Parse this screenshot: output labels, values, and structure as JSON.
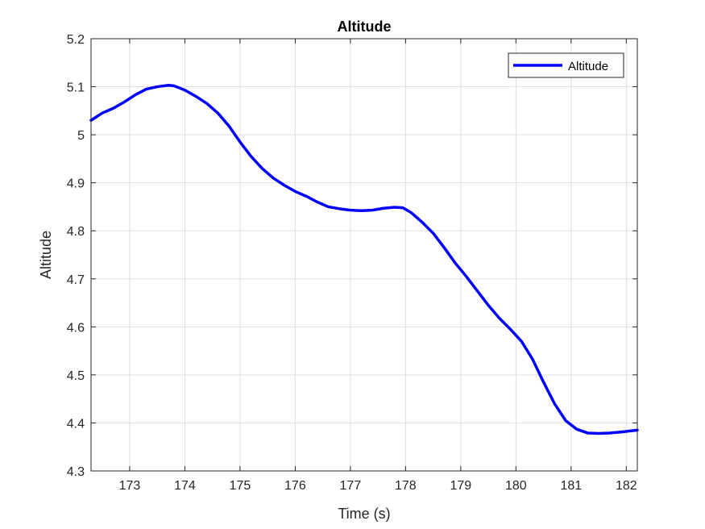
{
  "chart_data": {
    "type": "line",
    "title": "Altitude",
    "xlabel": "Time (s)",
    "ylabel": "Altitude",
    "xlim": [
      172.3,
      182.2
    ],
    "ylim": [
      4.3,
      5.2
    ],
    "xticks": [
      173,
      174,
      175,
      176,
      177,
      178,
      179,
      180,
      181,
      182
    ],
    "xtick_labels": [
      "173",
      "174",
      "175",
      "176",
      "177",
      "178",
      "179",
      "180",
      "181",
      "182"
    ],
    "yticks": [
      4.3,
      4.4,
      4.5,
      4.6,
      4.7,
      4.8,
      4.9,
      5.0,
      5.1,
      5.2
    ],
    "ytick_labels": [
      "4.3",
      "4.4",
      "4.5",
      "4.6",
      "4.7",
      "4.8",
      "4.9",
      "5",
      "5.1",
      "5.2"
    ],
    "grid": true,
    "legend_position": "top-right",
    "series": [
      {
        "name": "Altitude",
        "color": "#0000ff",
        "x": [
          172.3,
          172.5,
          172.7,
          172.9,
          173.1,
          173.3,
          173.5,
          173.7,
          173.8,
          174.0,
          174.2,
          174.4,
          174.6,
          174.8,
          175.0,
          175.2,
          175.4,
          175.6,
          175.8,
          176.0,
          176.2,
          176.4,
          176.6,
          176.8,
          177.0,
          177.2,
          177.4,
          177.6,
          177.8,
          177.95,
          178.1,
          178.3,
          178.5,
          178.7,
          178.9,
          179.1,
          179.3,
          179.5,
          179.7,
          179.9,
          180.1,
          180.3,
          180.5,
          180.7,
          180.9,
          181.1,
          181.3,
          181.5,
          181.7,
          181.9,
          182.2
        ],
        "values": [
          5.03,
          5.045,
          5.055,
          5.068,
          5.083,
          5.095,
          5.1,
          5.103,
          5.102,
          5.093,
          5.08,
          5.065,
          5.045,
          5.018,
          4.985,
          4.955,
          4.93,
          4.91,
          4.895,
          4.882,
          4.872,
          4.86,
          4.85,
          4.846,
          4.843,
          4.842,
          4.843,
          4.847,
          4.849,
          4.848,
          4.838,
          4.818,
          4.795,
          4.765,
          4.733,
          4.705,
          4.675,
          4.645,
          4.618,
          4.595,
          4.57,
          4.533,
          4.485,
          4.44,
          4.405,
          4.387,
          4.379,
          4.378,
          4.379,
          4.381,
          4.385
        ]
      }
    ]
  }
}
